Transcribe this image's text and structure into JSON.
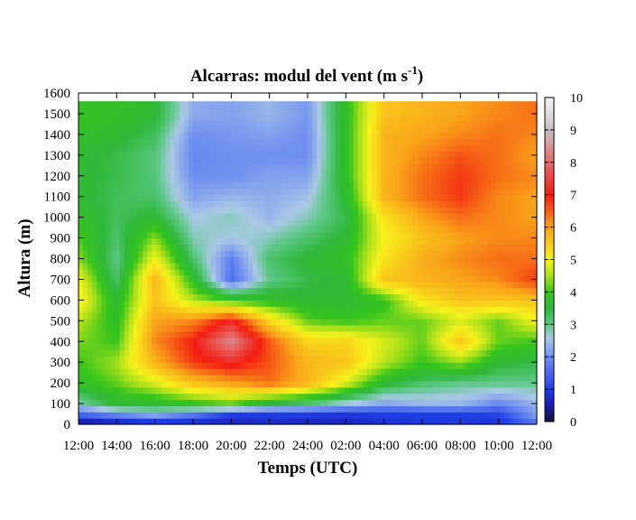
{
  "chart_data": {
    "type": "heatmap",
    "title": "Alcarras: modul del vent (m s",
    "title_sup": "-1",
    "title_close": ")",
    "xlabel": "Temps (UTC)",
    "ylabel": "Altura (m)",
    "x_ticks": [
      "12:00",
      "14:00",
      "16:00",
      "18:00",
      "20:00",
      "22:00",
      "24:00",
      "02:00",
      "04:00",
      "06:00",
      "08:00",
      "10:00",
      "12:00"
    ],
    "x_hours": [
      12,
      36
    ],
    "ylim": [
      0,
      1600
    ],
    "y_ticks": [
      0,
      100,
      200,
      300,
      400,
      500,
      600,
      700,
      800,
      900,
      1000,
      1100,
      1200,
      1300,
      1400,
      1500,
      1600
    ],
    "data_top": 1560,
    "colorbar": {
      "range": [
        0,
        10
      ],
      "ticks": [
        0,
        1,
        2,
        3,
        4,
        5,
        6,
        7,
        8,
        9,
        10
      ],
      "colors": [
        {
          "v": 0,
          "c": "#14103a"
        },
        {
          "v": 0.5,
          "c": "#1a1aa8"
        },
        {
          "v": 1,
          "c": "#1f3ee6"
        },
        {
          "v": 2,
          "c": "#6e8ef0"
        },
        {
          "v": 2.6,
          "c": "#aac9e6"
        },
        {
          "v": 3,
          "c": "#5fc88a"
        },
        {
          "v": 3.5,
          "c": "#2fb83a"
        },
        {
          "v": 4,
          "c": "#35c41d"
        },
        {
          "v": 4.5,
          "c": "#a9e01a"
        },
        {
          "v": 5,
          "c": "#f7f21c"
        },
        {
          "v": 6,
          "c": "#f9a51a"
        },
        {
          "v": 7,
          "c": "#f31c12"
        },
        {
          "v": 8,
          "c": "#e46a6a"
        },
        {
          "v": 9,
          "c": "#c8c0c0"
        },
        {
          "v": 10,
          "c": "#f3f3f3"
        }
      ]
    },
    "grid_time_hours": [
      12,
      14,
      16,
      18,
      20,
      22,
      24,
      26,
      28,
      30,
      32,
      34,
      36
    ],
    "grid_heights": [
      0,
      50,
      100,
      200,
      300,
      400,
      500,
      600,
      700,
      800,
      900,
      1000,
      1100,
      1200,
      1300,
      1400,
      1500
    ],
    "wind_speed_grid": [
      [
        0.2,
        0.3,
        0.4,
        0.5,
        0.6,
        0.7,
        0.6,
        0.6,
        0.8,
        0.9,
        0.9,
        0.8,
        1.6
      ],
      [
        1.5,
        2.0,
        2.4,
        1.8,
        1.0,
        1.0,
        1.0,
        0.9,
        1.0,
        1.0,
        1.0,
        1.1,
        2.2
      ],
      [
        2.8,
        3.6,
        3.6,
        3.9,
        4.2,
        3.4,
        3.1,
        2.6,
        2.2,
        2.4,
        2.4,
        1.9,
        2.4
      ],
      [
        3.8,
        4.2,
        4.8,
        5.6,
        6.0,
        6.4,
        5.8,
        4.8,
        3.6,
        3.2,
        3.0,
        3.0,
        3.0
      ],
      [
        4.0,
        4.5,
        5.8,
        6.8,
        7.2,
        6.6,
        5.8,
        5.6,
        4.6,
        4.0,
        4.4,
        3.6,
        3.4
      ],
      [
        4.3,
        4.0,
        6.2,
        7.0,
        8.4,
        6.6,
        5.4,
        5.4,
        4.8,
        4.2,
        5.6,
        4.2,
        4.0
      ],
      [
        4.6,
        3.8,
        6.0,
        6.2,
        7.2,
        5.4,
        4.2,
        4.0,
        4.2,
        4.2,
        4.8,
        4.2,
        5.0
      ],
      [
        5.2,
        3.6,
        5.6,
        4.6,
        4.0,
        3.8,
        3.6,
        3.6,
        3.9,
        5.2,
        5.6,
        5.6,
        5.6
      ],
      [
        5.0,
        3.2,
        5.8,
        3.8,
        1.6,
        3.0,
        3.4,
        3.6,
        5.6,
        5.8,
        6.0,
        6.2,
        6.8
      ],
      [
        4.4,
        3.0,
        5.0,
        3.2,
        1.8,
        3.2,
        3.6,
        3.8,
        5.2,
        5.9,
        6.2,
        6.4,
        6.4
      ],
      [
        4.1,
        3.2,
        4.4,
        2.8,
        2.6,
        2.8,
        3.2,
        3.6,
        5.0,
        5.6,
        6.0,
        6.2,
        6.2
      ],
      [
        3.8,
        3.3,
        3.6,
        2.6,
        2.8,
        2.4,
        2.8,
        3.4,
        5.2,
        6.0,
        6.4,
        6.2,
        6.0
      ],
      [
        3.6,
        3.3,
        3.2,
        2.2,
        2.4,
        2.3,
        2.5,
        3.6,
        5.8,
        6.4,
        6.8,
        6.2,
        6.0
      ],
      [
        3.6,
        3.4,
        3.1,
        2.0,
        2.0,
        2.2,
        2.2,
        3.8,
        5.8,
        6.4,
        6.8,
        6.4,
        6.2
      ],
      [
        3.6,
        3.4,
        3.1,
        1.9,
        2.0,
        2.0,
        2.0,
        3.8,
        5.8,
        6.2,
        6.6,
        6.4,
        6.0
      ],
      [
        3.8,
        3.6,
        3.3,
        2.0,
        2.1,
        2.2,
        2.0,
        3.8,
        5.8,
        6.0,
        6.2,
        6.4,
        6.2
      ],
      [
        3.9,
        3.8,
        3.6,
        2.3,
        2.2,
        2.4,
        2.1,
        3.8,
        5.6,
        5.8,
        6.0,
        6.2,
        6.4
      ]
    ]
  }
}
